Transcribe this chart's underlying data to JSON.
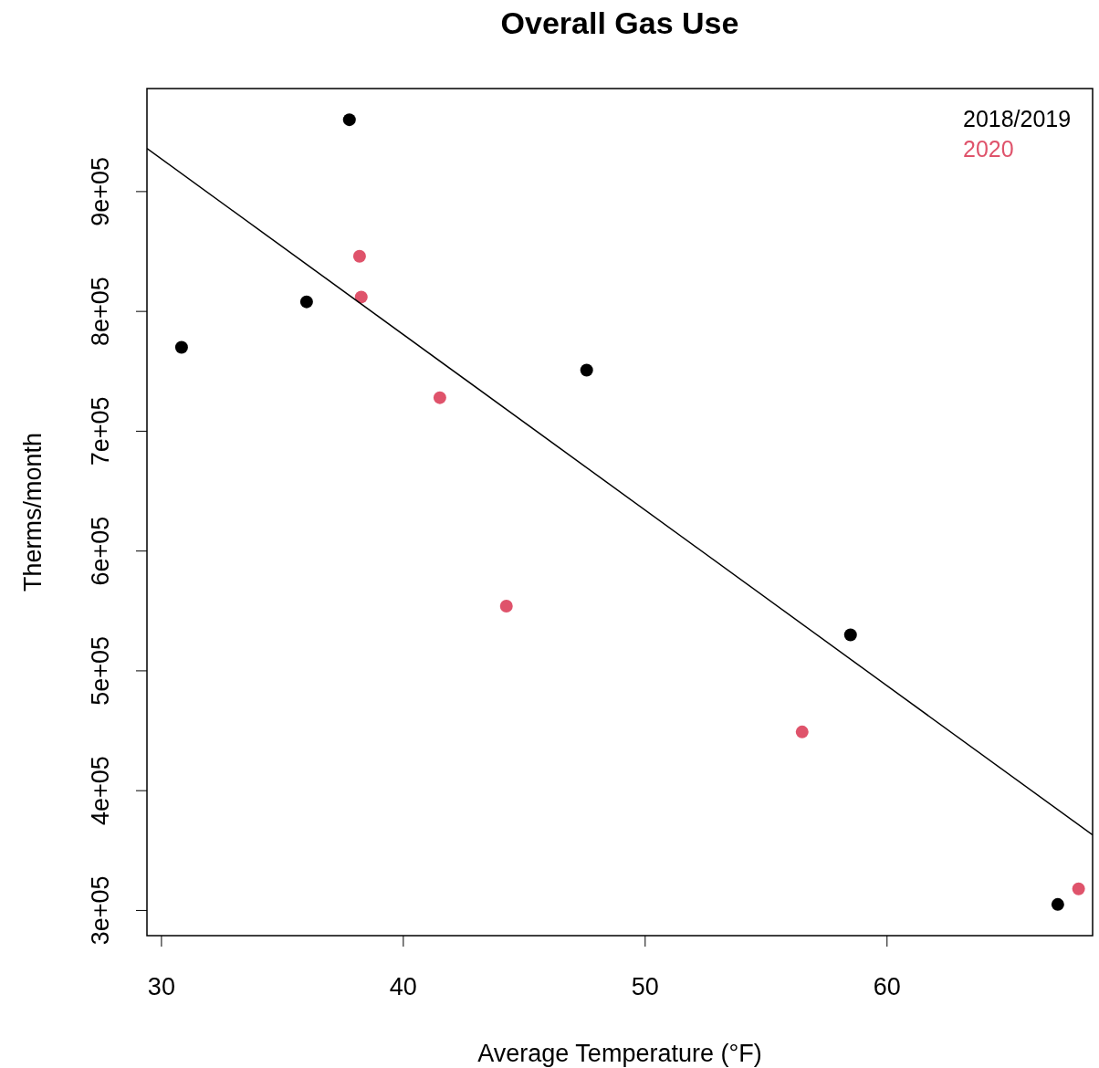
{
  "chart_data": {
    "type": "scatter",
    "title": "Overall Gas Use",
    "xlabel": "Average Temperature (°F)",
    "ylabel": "Therms/month",
    "xlim": [
      29.4,
      68.5
    ],
    "xticks": [
      30,
      40,
      50,
      60
    ],
    "ylim": [
      279000,
      986000
    ],
    "yticks": [
      {
        "value": 300000,
        "label": "3e+05"
      },
      {
        "value": 400000,
        "label": "4e+05"
      },
      {
        "value": 500000,
        "label": "5e+05"
      },
      {
        "value": 600000,
        "label": "6e+05"
      },
      {
        "value": 700000,
        "label": "7e+05"
      },
      {
        "value": 800000,
        "label": "8e+05"
      },
      {
        "value": 900000,
        "label": "9e+05"
      }
    ],
    "grid": false,
    "legend": "top right",
    "marker": "circle",
    "series": [
      {
        "name": "2018/2019",
        "color": "#000000",
        "x": [
          30.83,
          36.0,
          37.77,
          47.58,
          58.49,
          67.06
        ],
        "values": [
          770000,
          808000,
          960000,
          751000,
          530000,
          305000
        ]
      },
      {
        "name": "2020",
        "color": "#df536b",
        "x": [
          38.19,
          38.26,
          41.51,
          44.26,
          56.49,
          67.92
        ],
        "values": [
          846000,
          812000,
          728000,
          554000,
          449000,
          318000
        ]
      },
      {
        "type": "line",
        "marker": "none",
        "color": "#000000",
        "x": [
          29.4,
          68.5
        ],
        "values": [
          936000,
          363000
        ]
      }
    ]
  }
}
